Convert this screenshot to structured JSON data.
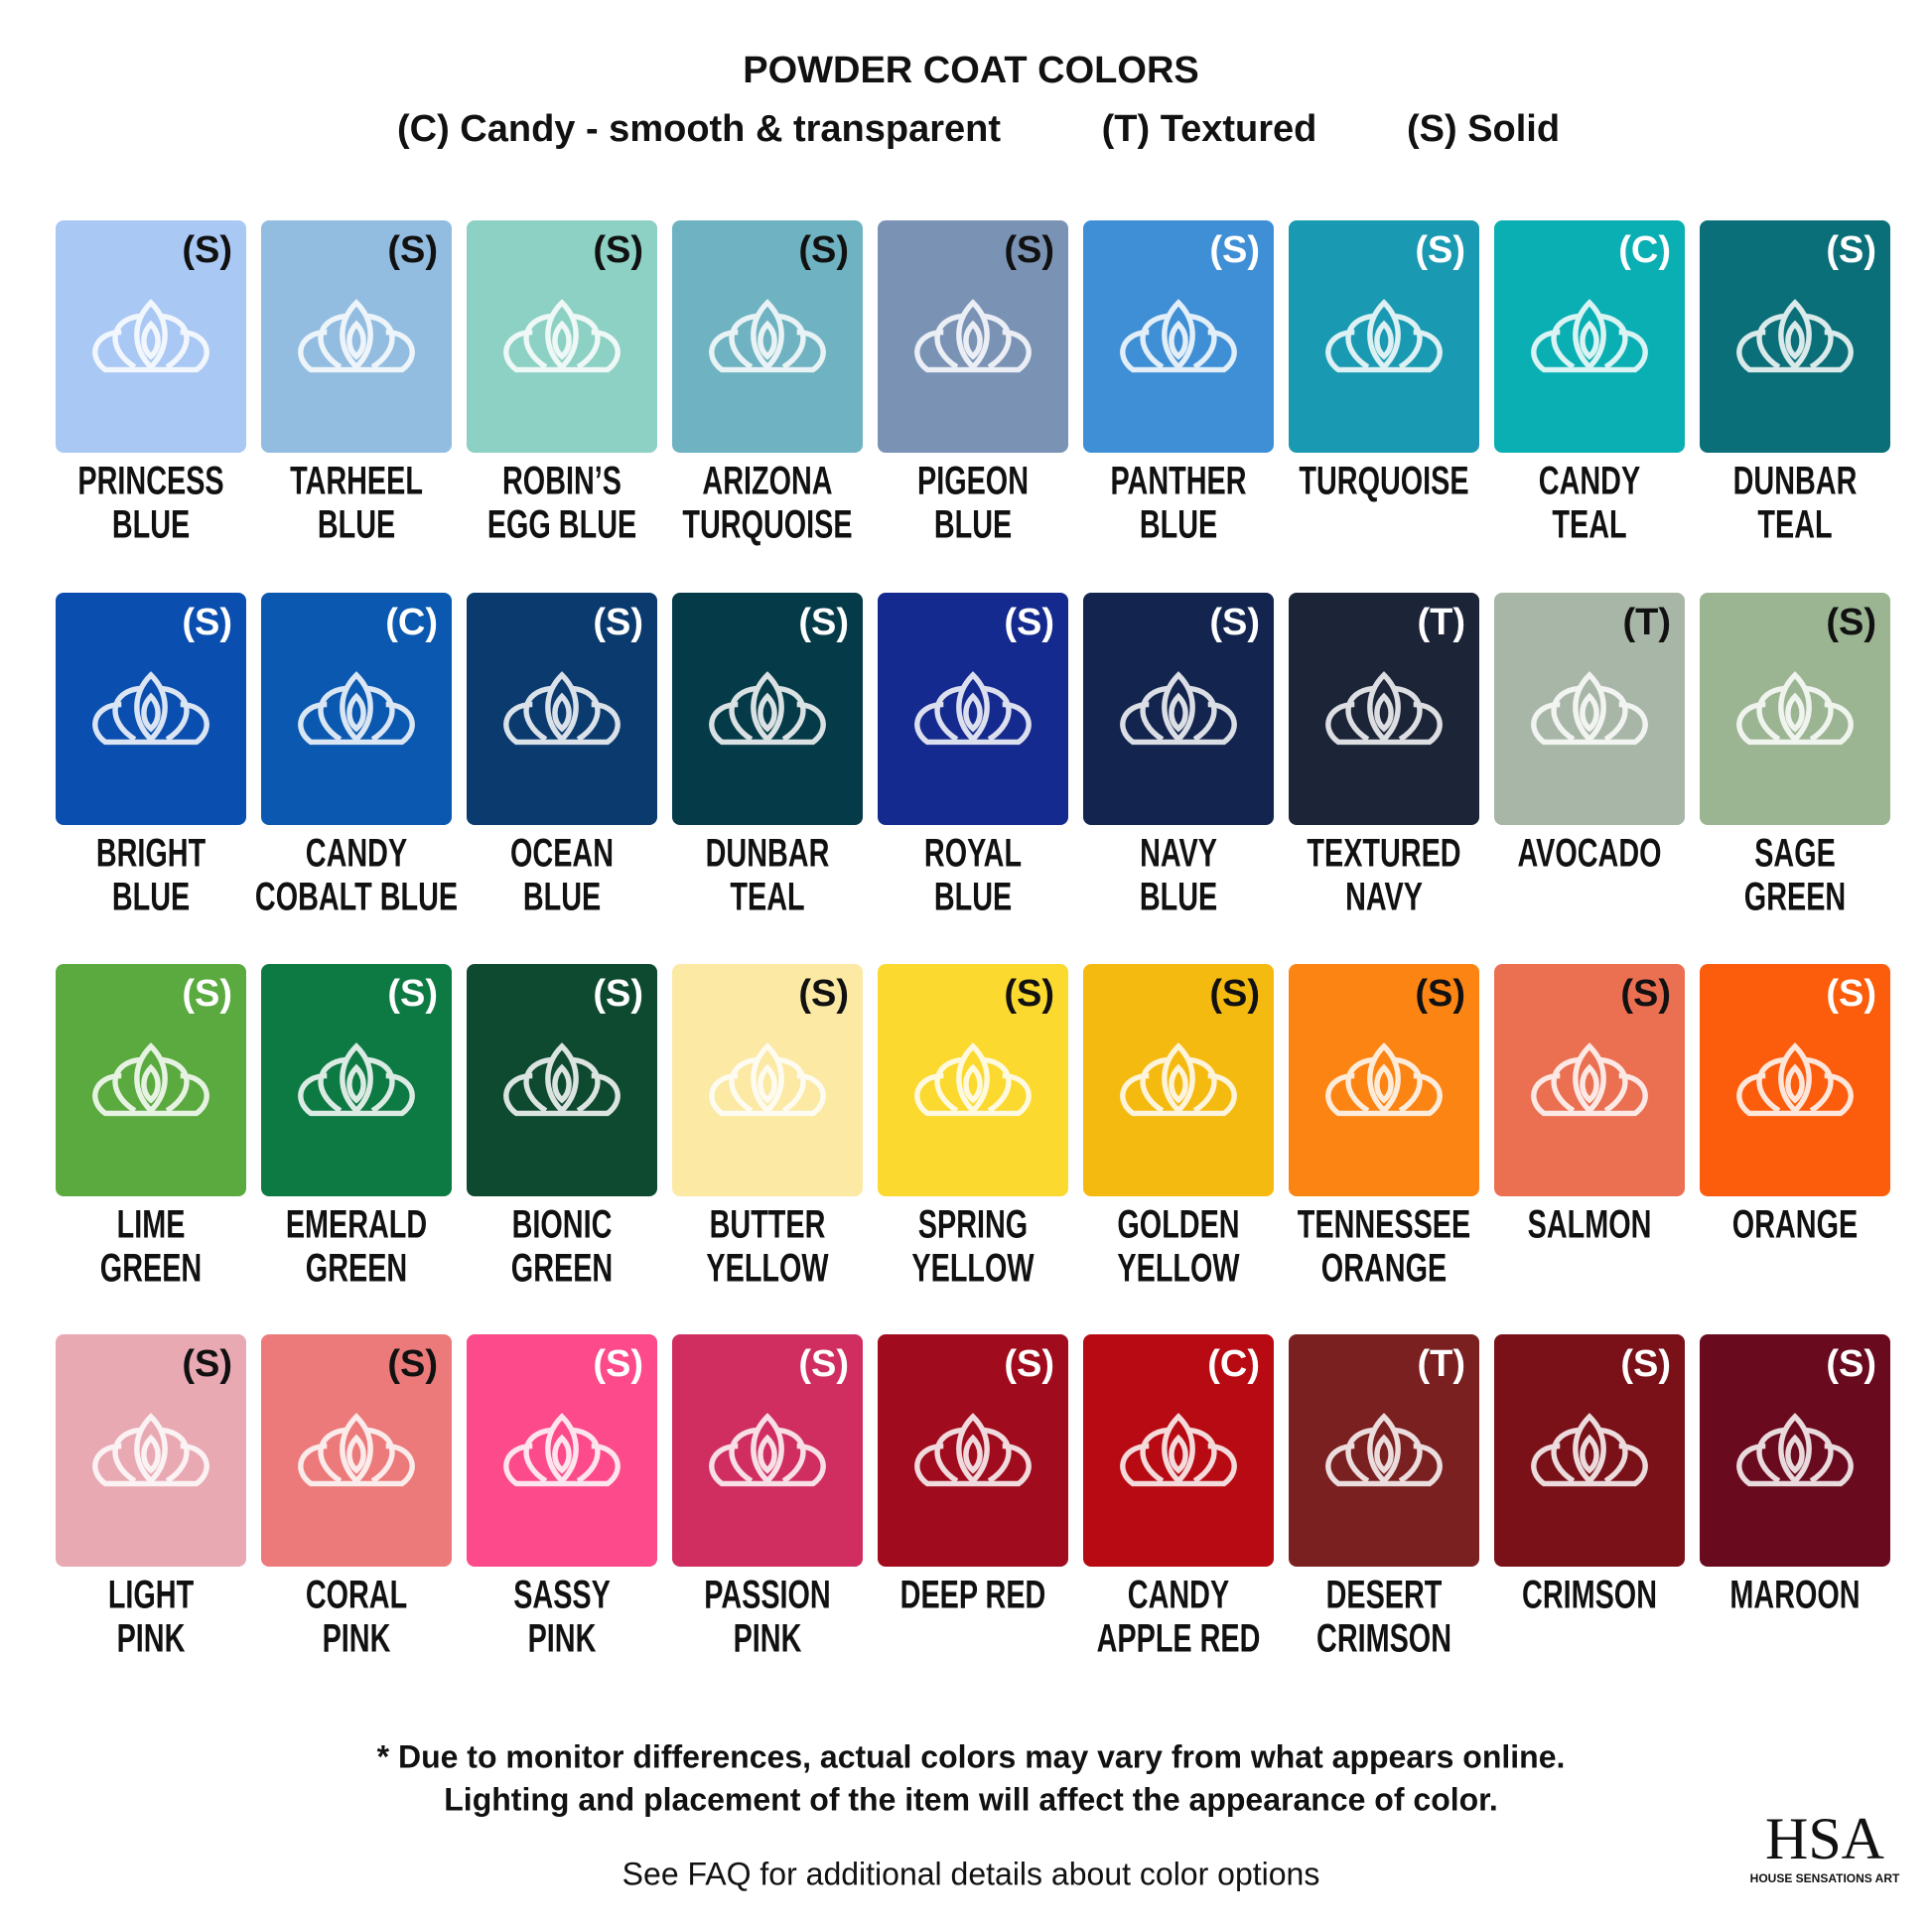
{
  "header": {
    "title": "POWDER COAT COLORS",
    "legend": [
      "(C) Candy - smooth & transparent",
      "(T) Textured",
      "(S) Solid"
    ]
  },
  "swatches": [
    [
      {
        "code": "(S)",
        "name": [
          "PRINCESS",
          "BLUE"
        ],
        "color": "#a9c8f4"
      },
      {
        "code": "(S)",
        "name": [
          "TARHEEL",
          "BLUE"
        ],
        "color": "#93bde0"
      },
      {
        "code": "(S)",
        "name": [
          "ROBIN’S",
          "EGG BLUE"
        ],
        "color": "#8dd0c4"
      },
      {
        "code": "(S)",
        "name": [
          "ARIZONA",
          "TURQUOISE"
        ],
        "color": "#6fb3c2"
      },
      {
        "code": "(S)",
        "name": [
          "PIGEON",
          "BLUE"
        ],
        "color": "#7a93b5"
      },
      {
        "code": "(S)",
        "name": [
          "PANTHER",
          "BLUE"
        ],
        "color": "#3f8fd6"
      },
      {
        "code": "(S)",
        "name": [
          "TURQUOISE"
        ],
        "color": "#1a9ab2"
      },
      {
        "code": "(C)",
        "name": [
          "CANDY",
          "TEAL"
        ],
        "color": "#0aafb4"
      },
      {
        "code": "(S)",
        "name": [
          "DUNBAR",
          "TEAL"
        ],
        "color": "#0a6f78"
      }
    ],
    [
      {
        "code": "(S)",
        "name": [
          "BRIGHT",
          "BLUE"
        ],
        "color": "#0a4fb0"
      },
      {
        "code": "(C)",
        "name": [
          "CANDY",
          "COBALT BLUE"
        ],
        "color": "#0a58b0"
      },
      {
        "code": "(S)",
        "name": [
          "OCEAN",
          "BLUE"
        ],
        "color": "#0a3a6e"
      },
      {
        "code": "(S)",
        "name": [
          "DUNBAR",
          "TEAL"
        ],
        "color": "#053a48"
      },
      {
        "code": "(S)",
        "name": [
          "ROYAL",
          "BLUE"
        ],
        "color": "#152a8e"
      },
      {
        "code": "(S)",
        "name": [
          "NAVY",
          "BLUE"
        ],
        "color": "#13254e"
      },
      {
        "code": "(T)",
        "name": [
          "TEXTURED",
          "NAVY"
        ],
        "color": "#1c2438"
      },
      {
        "code": "(T)",
        "name": [
          "AVOCADO"
        ],
        "color": "#a7b6a6"
      },
      {
        "code": "(S)",
        "name": [
          "SAGE",
          "GREEN"
        ],
        "color": "#9bb593"
      }
    ],
    [
      {
        "code": "(S)",
        "name": [
          "LIME",
          "GREEN"
        ],
        "color": "#5aaa3f"
      },
      {
        "code": "(S)",
        "name": [
          "EMERALD",
          "GREEN"
        ],
        "color": "#0e7a43"
      },
      {
        "code": "(S)",
        "name": [
          "BIONIC",
          "GREEN"
        ],
        "color": "#0e4a30"
      },
      {
        "code": "(S)",
        "name": [
          "BUTTER",
          "YELLOW"
        ],
        "color": "#fbe9a4"
      },
      {
        "code": "(S)",
        "name": [
          "SPRING",
          "YELLOW"
        ],
        "color": "#fbd92e"
      },
      {
        "code": "(S)",
        "name": [
          "GOLDEN",
          "YELLOW"
        ],
        "color": "#f5ba10"
      },
      {
        "code": "(S)",
        "name": [
          "TENNESSEE",
          "ORANGE"
        ],
        "color": "#fc8413"
      },
      {
        "code": "(S)",
        "name": [
          "SALMON"
        ],
        "color": "#eb6f51"
      },
      {
        "code": "(S)",
        "name": [
          "ORANGE"
        ],
        "color": "#fc5d0c"
      }
    ],
    [
      {
        "code": "(S)",
        "name": [
          "LIGHT",
          "PINK"
        ],
        "color": "#e9a9b3"
      },
      {
        "code": "(S)",
        "name": [
          "CORAL",
          "PINK"
        ],
        "color": "#ec7a7a"
      },
      {
        "code": "(S)",
        "name": [
          "SASSY",
          "PINK"
        ],
        "color": "#fc4a8a"
      },
      {
        "code": "(S)",
        "name": [
          "PASSION",
          "PINK"
        ],
        "color": "#d02e60"
      },
      {
        "code": "(S)",
        "name": [
          "DEEP RED"
        ],
        "color": "#a00c1d"
      },
      {
        "code": "(C)",
        "name": [
          "CANDY",
          "APPLE RED"
        ],
        "color": "#b80a12"
      },
      {
        "code": "(T)",
        "name": [
          "DESERT",
          "CRIMSON"
        ],
        "color": "#7a2020"
      },
      {
        "code": "(S)",
        "name": [
          "CRIMSON"
        ],
        "color": "#7a1018"
      },
      {
        "code": "(S)",
        "name": [
          "MAROON"
        ],
        "color": "#6a0a1e"
      }
    ]
  ],
  "footer": {
    "notes": [
      "* Due to monitor differences, actual colors may vary from what appears online.",
      "Lighting and placement of the item will affect the appearance of color."
    ],
    "faq": "See FAQ for additional details about color options"
  },
  "logo": {
    "mark": "HSA",
    "tagline": "HOUSE SENSATIONS ART"
  }
}
